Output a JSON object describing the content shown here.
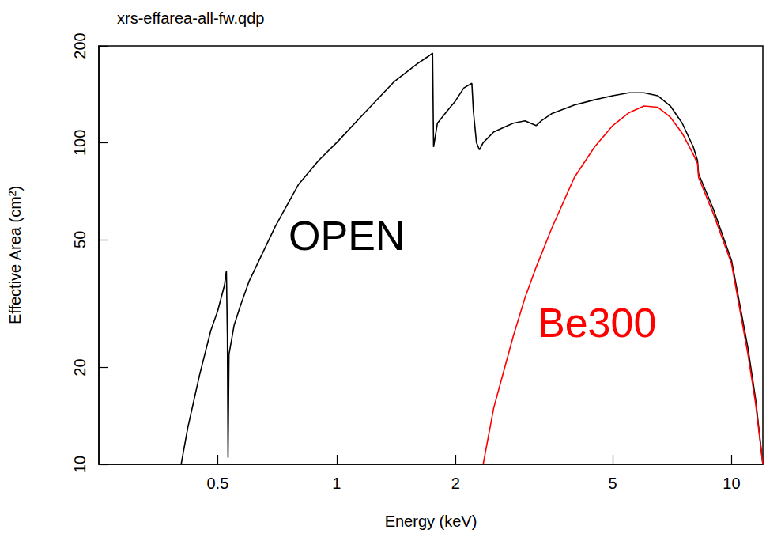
{
  "chart_data": {
    "type": "line",
    "title": "xrs-effarea-all-fw.qdp",
    "xlabel": "Energy (keV)",
    "ylabel": "Effective Area (cm²)",
    "log": true,
    "grid": false,
    "xlim": [
      0.25,
      12
    ],
    "xticks": [
      0.5,
      1,
      2,
      5,
      10
    ],
    "ylim": [
      10,
      200
    ],
    "yticks": [
      10,
      20,
      50,
      100,
      200
    ],
    "x": [
      0.404,
      0.42,
      0.45,
      0.48,
      0.5,
      0.52,
      0.526,
      0.529,
      0.531,
      0.534,
      0.55,
      0.57,
      0.6,
      0.7,
      0.8,
      0.9,
      1.0,
      1.2,
      1.4,
      1.6,
      1.7,
      1.75,
      1.76,
      1.8,
      1.9,
      2.0,
      2.1,
      2.2,
      2.22,
      2.26,
      2.3,
      2.35,
      2.5,
      2.8,
      3.0,
      3.2,
      3.3,
      3.5,
      4.0,
      4.5,
      5.0,
      5.5,
      6.0,
      6.5,
      7.0,
      7.5,
      8.0,
      8.2,
      8.25,
      9.0,
      10.0,
      11.0,
      11.5,
      12.0
    ],
    "series": [
      {
        "name": "OPEN",
        "color": "#000000",
        "values": [
          10,
          13,
          19,
          26,
          30,
          36,
          40,
          25,
          10.5,
          22,
          27,
          31,
          37,
          55,
          74,
          88,
          100,
          127,
          155,
          176,
          185,
          190,
          97,
          115,
          125,
          135,
          148,
          153,
          125,
          100,
          95,
          100,
          108,
          115,
          117,
          113,
          117,
          123,
          131,
          136,
          140,
          143,
          143,
          140,
          130,
          115,
          97,
          88,
          80,
          62,
          43,
          23,
          16,
          10
        ]
      },
      {
        "name": "Be300",
        "color": "#ff0000",
        "values": [
          null,
          null,
          null,
          null,
          null,
          null,
          null,
          null,
          null,
          null,
          null,
          null,
          null,
          null,
          null,
          null,
          null,
          null,
          null,
          null,
          null,
          null,
          null,
          null,
          null,
          null,
          null,
          null,
          null,
          null,
          null,
          10,
          15,
          25,
          33,
          41,
          45,
          54,
          78,
          97,
          113,
          124,
          130,
          129,
          120,
          107,
          92,
          86,
          78,
          60,
          42,
          22,
          15.5,
          10
        ]
      }
    ]
  }
}
